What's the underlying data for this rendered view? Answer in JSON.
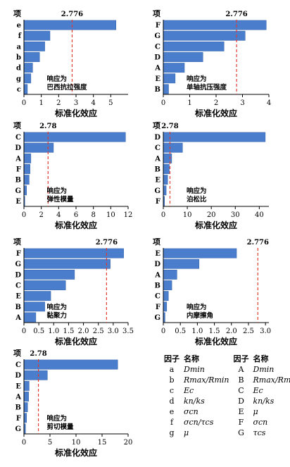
{
  "chart_data": [
    {
      "type": "bar",
      "orientation": "horizontal",
      "ylabel": "项",
      "xlabel": "标准化效应",
      "categories": [
        "e",
        "f",
        "a",
        "b",
        "d",
        "g",
        "c"
      ],
      "values": [
        5.3,
        1.5,
        1.2,
        0.9,
        0.5,
        0.4,
        0.2
      ],
      "threshold": 2.776,
      "threshold_label": "2.776",
      "xlim": [
        0,
        6
      ],
      "xticks": [
        "0",
        "1",
        "2",
        "3",
        "4",
        "5"
      ],
      "annotation": [
        "响应为",
        "巴西抗拉强度"
      ]
    },
    {
      "type": "bar",
      "orientation": "horizontal",
      "ylabel": "项",
      "xlabel": "标准化效应",
      "categories": [
        "F",
        "G",
        "C",
        "D",
        "A",
        "E",
        "B"
      ],
      "values": [
        3.9,
        3.1,
        2.3,
        1.5,
        0.8,
        0.45,
        0.2
      ],
      "threshold": 2.776,
      "threshold_label": "2.776",
      "xlim": [
        0,
        4
      ],
      "xticks": [
        "0",
        "1",
        "2",
        "3",
        "4"
      ],
      "annotation": [
        "响应为",
        "单轴抗压强度"
      ]
    },
    {
      "type": "bar",
      "orientation": "horizontal",
      "ylabel": "项",
      "xlabel": "标准化效应",
      "categories": [
        "C",
        "D",
        "A",
        "F",
        "B",
        "G",
        "E"
      ],
      "values": [
        11.7,
        3.4,
        0.8,
        0.7,
        0.6,
        0.3,
        0.1
      ],
      "threshold": 2.78,
      "threshold_label": "2.78",
      "xlim": [
        0,
        12
      ],
      "xticks": [
        "0",
        "2",
        "4",
        "6",
        "8",
        "10",
        "12"
      ],
      "annotation": [
        "响应为",
        "弹性模量"
      ]
    },
    {
      "type": "bar",
      "orientation": "horizontal",
      "ylabel": "项",
      "xlabel": "标准化效应",
      "categories": [
        "D",
        "C",
        "A",
        "B",
        "E",
        "G",
        "F"
      ],
      "values": [
        42.5,
        8.0,
        3.5,
        2.5,
        1.8,
        1.2,
        0.5
      ],
      "threshold": 2.78,
      "threshold_label": "2.78",
      "xlim": [
        0,
        44
      ],
      "xticks": [
        "0",
        "10",
        "20",
        "30",
        "40"
      ],
      "annotation": [
        "响应为",
        "泊松比"
      ]
    },
    {
      "type": "bar",
      "orientation": "horizontal",
      "ylabel": "项",
      "xlabel": "标准化效应",
      "categories": [
        "F",
        "G",
        "D",
        "C",
        "E",
        "B",
        "A"
      ],
      "values": [
        3.35,
        2.9,
        1.7,
        1.4,
        0.9,
        0.7,
        0.4
      ],
      "threshold": 2.776,
      "threshold_label": "2.776",
      "xlim": [
        0,
        3.5
      ],
      "xticks": [
        "0",
        "0.5",
        "1.0",
        "1.5",
        "2.0",
        "2.5",
        "3.0",
        "3.5"
      ],
      "annotation": [
        "响应为",
        "黏聚力"
      ]
    },
    {
      "type": "bar",
      "orientation": "horizontal",
      "ylabel": "项",
      "xlabel": "标准化效应",
      "categories": [
        "E",
        "D",
        "A",
        "B",
        "C",
        "F",
        "G"
      ],
      "values": [
        2.15,
        1.05,
        0.4,
        0.25,
        0.15,
        0.1,
        0.05
      ],
      "threshold": 2.776,
      "threshold_label": "2.776",
      "xlim": [
        0,
        3.1
      ],
      "xticks": [
        "0",
        "0.5",
        "1.0",
        "1.5",
        "2.0",
        "2.5",
        "3.0"
      ],
      "annotation": [
        "响应为",
        "内摩擦角"
      ]
    },
    {
      "type": "bar",
      "orientation": "horizontal",
      "ylabel": "项",
      "xlabel": "标准化效应",
      "categories": [
        "C",
        "D",
        "E",
        "A",
        "B",
        "F",
        "G"
      ],
      "values": [
        18.0,
        4.5,
        1.0,
        0.9,
        0.7,
        0.5,
        0.3
      ],
      "threshold": 2.78,
      "threshold_label": "2.78",
      "xlim": [
        0,
        20
      ],
      "xticks": [
        "0",
        "5",
        "10",
        "15",
        "20"
      ],
      "annotation": [
        "响应为",
        "剪切模量"
      ]
    }
  ],
  "legend": {
    "header": [
      "因子",
      "名称",
      "因子",
      "名称"
    ],
    "rows": [
      [
        "a",
        "Dmin",
        "A",
        "Dmin"
      ],
      [
        "b",
        "Rmax/Rmin",
        "B",
        "Rmax/Rmin"
      ],
      [
        "c",
        "Ec",
        "C",
        "Ec"
      ],
      [
        "d",
        "kn/ks",
        "D",
        "kn/ks"
      ],
      [
        "e",
        "σcn",
        "E",
        "μ"
      ],
      [
        "f",
        "σcn/τcs",
        "F",
        "σcn"
      ],
      [
        "g",
        "μ",
        "G",
        "τcs"
      ]
    ]
  }
}
